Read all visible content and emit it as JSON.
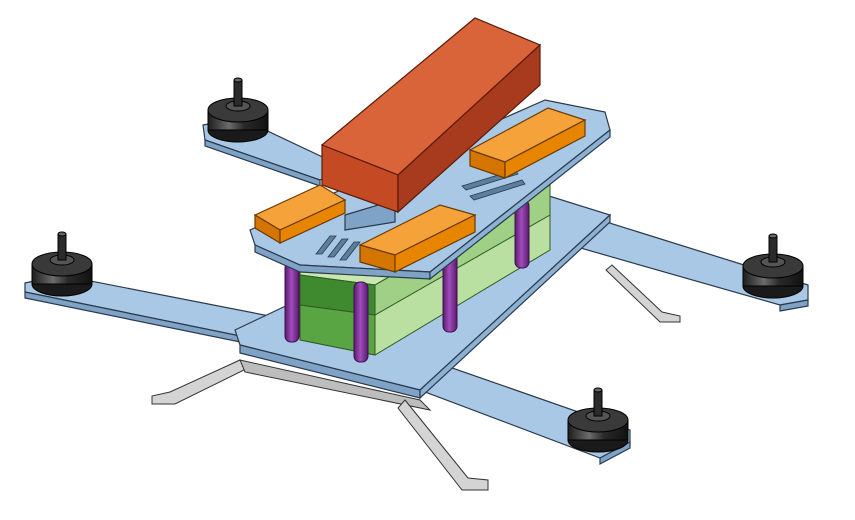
{
  "colors": {
    "background": "#ffffff",
    "frame_arm": "#a9c8e6",
    "frame_arm_dark": "#7fa3c6",
    "frame_edge": "#2a3a4a",
    "motor": "#2d2d2d",
    "motor_highlight": "#7a7a7a",
    "landing_gear": "#cfcfcf",
    "standoff": "#8a2fa0",
    "board_green": "#7bbf5a",
    "board_green_light": "#b9e0a0",
    "board_green_dark": "#3f8a2e",
    "plate_top": "#a9c8e6",
    "esc_orange": "#f08a00",
    "battery_red": "#cf4e2a",
    "battery_red_dark": "#a83a1d"
  },
  "icons": {
    "motor": "motor-icon",
    "standoff": "standoff-icon",
    "battery": "battery-icon"
  }
}
